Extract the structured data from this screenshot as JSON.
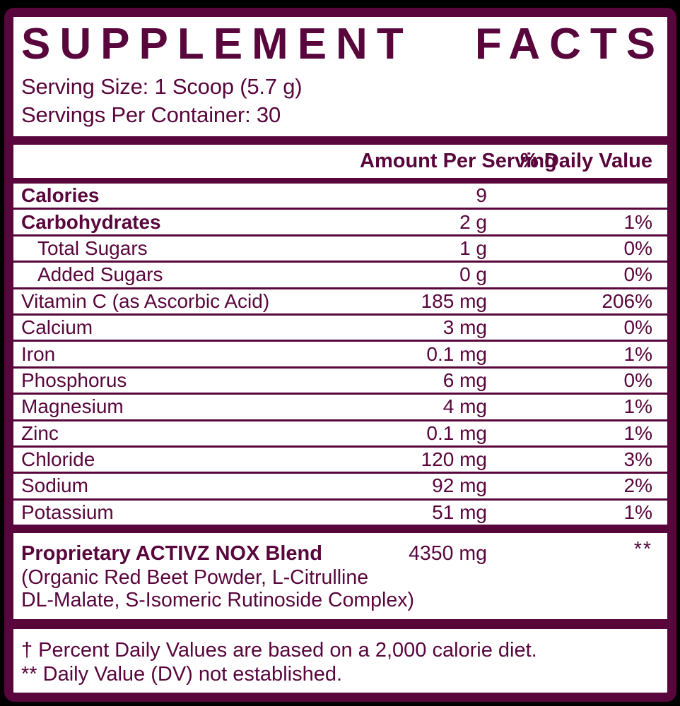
{
  "colors": {
    "accent_plum": "#58063C",
    "paper": "#FFFFFF",
    "outside_background": "#000000"
  },
  "header": {
    "title": "SUPPLEMENT FACTS",
    "serving_size": "Serving Size: 1 Scoop (5.7 g)",
    "servings_per_container": "Servings Per Container: 30"
  },
  "table": {
    "columns": {
      "amount": "Amount Per Serving",
      "daily_value": "% Daily Value"
    },
    "rows": [
      {
        "name": "Calories",
        "amount": "9",
        "dv": ""
      },
      {
        "name": "Carbohydrates",
        "amount": "2 g",
        "dv": "1%"
      },
      {
        "name": "Total Sugars",
        "amount": "1 g",
        "dv": "0%"
      },
      {
        "name": "Added Sugars",
        "amount": "0 g",
        "dv": "0%"
      },
      {
        "name": "Vitamin C (as Ascorbic Acid)",
        "amount": "185 mg",
        "dv": "206%"
      },
      {
        "name": "Calcium",
        "amount": "3 mg",
        "dv": "0%"
      },
      {
        "name": "Iron",
        "amount": "0.1 mg",
        "dv": "1%"
      },
      {
        "name": "Phosphorus",
        "amount": "6 mg",
        "dv": "0%"
      },
      {
        "name": "Magnesium",
        "amount": "4 mg",
        "dv": "1%"
      },
      {
        "name": "Zinc",
        "amount": "0.1 mg",
        "dv": "1%"
      },
      {
        "name": "Chloride",
        "amount": "120 mg",
        "dv": "3%"
      },
      {
        "name": "Sodium",
        "amount": "92 mg",
        "dv": "2%"
      },
      {
        "name": "Potassium",
        "amount": "51 mg",
        "dv": "1%"
      }
    ]
  },
  "blend": {
    "name": "Proprietary ACTIVZ NOX Blend",
    "amount": "4350 mg",
    "dv": "**",
    "description_line_1": "(Organic Red Beet Powder, L-Citrulline",
    "description_line_2": "DL-Malate, S-Isomeric Rutinoside Complex)"
  },
  "footnotes": {
    "daily_value_note": "† Percent Daily Values are based on a 2,000 calorie diet.",
    "not_established_note": "** Daily Value (DV) not established."
  }
}
